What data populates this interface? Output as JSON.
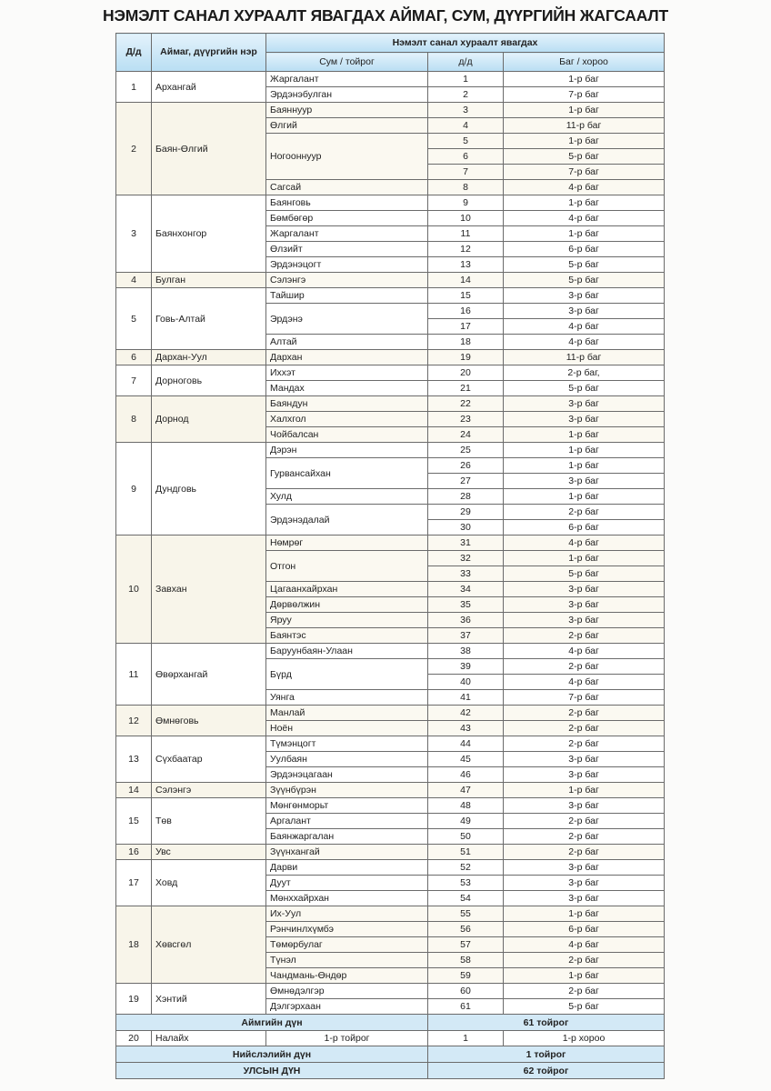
{
  "title": "НЭМЭЛТ САНАЛ ХУРААЛТ ЯВАГДАХ АЙМАГ, СУМ, ДҮҮРГИЙН ЖАГСААЛТ",
  "header": {
    "no": "Д/д",
    "aimag": "Аймаг, дүүргийн нэр",
    "group": "Нэмэлт санал хураалт явагдах",
    "soum": "Сум / тойрог",
    "dd": "д/д",
    "bag": "Баг / хороо"
  },
  "colors": {
    "header_blue": "#b9def3",
    "summary_blue": "#d3e9f6",
    "cream": "#f8f5ea"
  },
  "aimags": [
    {
      "no": "1",
      "name": "Архангай",
      "soums": [
        {
          "name": "Жаргалант",
          "items": [
            [
              "1",
              "1-р баг"
            ]
          ]
        },
        {
          "name": "Эрдэнэбулган",
          "items": [
            [
              "2",
              "7-р баг"
            ]
          ]
        }
      ]
    },
    {
      "no": "2",
      "name": "Баян-Өлгий",
      "soums": [
        {
          "name": "Баяннуур",
          "items": [
            [
              "3",
              "1-р баг"
            ]
          ]
        },
        {
          "name": "Өлгий",
          "items": [
            [
              "4",
              "11-р баг"
            ]
          ]
        },
        {
          "name": "Ногооннуур",
          "items": [
            [
              "5",
              "1-р баг"
            ],
            [
              "6",
              "5-р баг"
            ],
            [
              "7",
              "7-р баг"
            ]
          ]
        },
        {
          "name": "Сагсай",
          "items": [
            [
              "8",
              "4-р баг"
            ]
          ]
        }
      ]
    },
    {
      "no": "3",
      "name": "Баянхонгор",
      "soums": [
        {
          "name": "Баянговь",
          "items": [
            [
              "9",
              "1-р баг"
            ]
          ]
        },
        {
          "name": "Бөмбөгөр",
          "items": [
            [
              "10",
              "4-р баг"
            ]
          ]
        },
        {
          "name": "Жаргалант",
          "items": [
            [
              "11",
              "1-р баг"
            ]
          ]
        },
        {
          "name": "Өлзийт",
          "items": [
            [
              "12",
              "6-р баг"
            ]
          ]
        },
        {
          "name": "Эрдэнэцогт",
          "items": [
            [
              "13",
              "5-р баг"
            ]
          ]
        }
      ]
    },
    {
      "no": "4",
      "name": "Булган",
      "soums": [
        {
          "name": "Сэлэнгэ",
          "items": [
            [
              "14",
              "5-р баг"
            ]
          ]
        }
      ]
    },
    {
      "no": "5",
      "name": "Говь-Алтай",
      "soums": [
        {
          "name": "Тайшир",
          "items": [
            [
              "15",
              "3-р баг"
            ]
          ]
        },
        {
          "name": "Эрдэнэ",
          "items": [
            [
              "16",
              "3-р баг"
            ],
            [
              "17",
              "4-р баг"
            ]
          ]
        },
        {
          "name": "Алтай",
          "items": [
            [
              "18",
              "4-р баг"
            ]
          ]
        }
      ]
    },
    {
      "no": "6",
      "name": "Дархан-Уул",
      "soums": [
        {
          "name": "Дархан",
          "items": [
            [
              "19",
              "11-р баг"
            ]
          ]
        }
      ]
    },
    {
      "no": "7",
      "name": "Дорноговь",
      "soums": [
        {
          "name": "Иххэт",
          "items": [
            [
              "20",
              "2-р баг,"
            ]
          ]
        },
        {
          "name": "Мандах",
          "items": [
            [
              "21",
              "5-р баг"
            ]
          ]
        }
      ]
    },
    {
      "no": "8",
      "name": "Дорнод",
      "soums": [
        {
          "name": "Баяндун",
          "items": [
            [
              "22",
              "3-р баг"
            ]
          ]
        },
        {
          "name": "Халхгол",
          "items": [
            [
              "23",
              "3-р баг"
            ]
          ]
        },
        {
          "name": "Чойбалсан",
          "items": [
            [
              "24",
              "1-р баг"
            ]
          ]
        }
      ]
    },
    {
      "no": "9",
      "name": "Дундговь",
      "soums": [
        {
          "name": "Дэрэн",
          "items": [
            [
              "25",
              "1-р баг"
            ]
          ]
        },
        {
          "name": "Гурвансайхан",
          "items": [
            [
              "26",
              "1-р баг"
            ],
            [
              "27",
              "3-р баг"
            ]
          ]
        },
        {
          "name": "Хулд",
          "items": [
            [
              "28",
              "1-р баг"
            ]
          ]
        },
        {
          "name": "Эрдэнэдалай",
          "items": [
            [
              "29",
              "2-р баг"
            ],
            [
              "30",
              "6-р баг"
            ]
          ]
        }
      ]
    },
    {
      "no": "10",
      "name": "Завхан",
      "soums": [
        {
          "name": "Нөмрөг",
          "items": [
            [
              "31",
              "4-р баг"
            ]
          ]
        },
        {
          "name": "Отгон",
          "items": [
            [
              "32",
              "1-р баг"
            ],
            [
              "33",
              "5-р баг"
            ]
          ]
        },
        {
          "name": "Цагаанхайрхан",
          "items": [
            [
              "34",
              "3-р баг"
            ]
          ]
        },
        {
          "name": "Дөрвөлжин",
          "items": [
            [
              "35",
              "3-р баг"
            ]
          ]
        },
        {
          "name": "Яруу",
          "items": [
            [
              "36",
              "3-р баг"
            ]
          ]
        },
        {
          "name": "Баянтэс",
          "items": [
            [
              "37",
              "2-р баг"
            ]
          ]
        }
      ]
    },
    {
      "no": "11",
      "name": "Өвөрхангай",
      "soums": [
        {
          "name": "Баруунбаян-Улаан",
          "items": [
            [
              "38",
              "4-р баг"
            ]
          ]
        },
        {
          "name": "Бүрд",
          "items": [
            [
              "39",
              "2-р баг"
            ],
            [
              "40",
              "4-р баг"
            ]
          ]
        },
        {
          "name": "Уянга",
          "items": [
            [
              "41",
              "7-р баг"
            ]
          ]
        }
      ]
    },
    {
      "no": "12",
      "name": "Өмнөговь",
      "soums": [
        {
          "name": "Манлай",
          "items": [
            [
              "42",
              "2-р баг"
            ]
          ]
        },
        {
          "name": "Ноён",
          "items": [
            [
              "43",
              "2-р баг"
            ]
          ]
        }
      ]
    },
    {
      "no": "13",
      "name": "Сүхбаатар",
      "soums": [
        {
          "name": "Түмэнцогт",
          "items": [
            [
              "44",
              "2-р баг"
            ]
          ]
        },
        {
          "name": "Уулбаян",
          "items": [
            [
              "45",
              "3-р баг"
            ]
          ]
        },
        {
          "name": "Эрдэнэцагаан",
          "items": [
            [
              "46",
              "3-р баг"
            ]
          ]
        }
      ]
    },
    {
      "no": "14",
      "name": "Сэлэнгэ",
      "soums": [
        {
          "name": "Зүүнбүрэн",
          "items": [
            [
              "47",
              "1-р баг"
            ]
          ]
        }
      ]
    },
    {
      "no": "15",
      "name": "Төв",
      "soums": [
        {
          "name": "Мөнгөнморьт",
          "items": [
            [
              "48",
              "3-р баг"
            ]
          ]
        },
        {
          "name": "Аргалант",
          "items": [
            [
              "49",
              "2-р баг"
            ]
          ]
        },
        {
          "name": "Баянжаргалан",
          "items": [
            [
              "50",
              "2-р баг"
            ]
          ]
        }
      ]
    },
    {
      "no": "16",
      "name": "Увс",
      "soums": [
        {
          "name": "Зүүнхангай",
          "items": [
            [
              "51",
              "2-р баг"
            ]
          ]
        }
      ]
    },
    {
      "no": "17",
      "name": "Ховд",
      "soums": [
        {
          "name": "Дарви",
          "items": [
            [
              "52",
              "3-р баг"
            ]
          ]
        },
        {
          "name": "Дуут",
          "items": [
            [
              "53",
              "3-р баг"
            ]
          ]
        },
        {
          "name": "Мөнххайрхан",
          "items": [
            [
              "54",
              "3-р баг"
            ]
          ]
        }
      ]
    },
    {
      "no": "18",
      "name": "Хөвсгөл",
      "soums": [
        {
          "name": "Их-Уул",
          "items": [
            [
              "55",
              "1-р баг"
            ]
          ]
        },
        {
          "name": "Рэнчинлхүмбэ",
          "items": [
            [
              "56",
              "6-р баг"
            ]
          ]
        },
        {
          "name": "Төмөрбулаг",
          "items": [
            [
              "57",
              "4-р баг"
            ]
          ]
        },
        {
          "name": "Түнэл",
          "items": [
            [
              "58",
              "2-р баг"
            ]
          ]
        },
        {
          "name": "Чандмань-Өндөр",
          "items": [
            [
              "59",
              "1-р баг"
            ]
          ]
        }
      ]
    },
    {
      "no": "19",
      "name": "Хэнтий",
      "soums": [
        {
          "name": "Өмнөдэлгэр",
          "items": [
            [
              "60",
              "2-р баг"
            ]
          ]
        },
        {
          "name": "Дэлгэрхаан",
          "items": [
            [
              "61",
              "5-р баг"
            ]
          ]
        }
      ]
    }
  ],
  "aimag_total": {
    "label": "Аймгийн дүн",
    "value": "61 тойрог"
  },
  "capital_row": {
    "no": "20",
    "name": "Налайх",
    "soum": "1-р тойрог",
    "dd": "1",
    "bag": "1-р хороо"
  },
  "capital_total": {
    "label": "Нийслэлийн дүн",
    "value": "1 тойрог"
  },
  "national_total": {
    "label": "УЛСЫН ДҮН",
    "value": "62 тойрог"
  }
}
